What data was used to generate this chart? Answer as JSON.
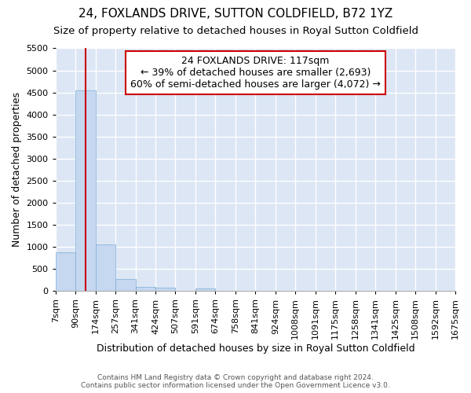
{
  "title_line1": "24, FOXLANDS DRIVE, SUTTON COLDFIELD, B72 1YZ",
  "title_line2": "Size of property relative to detached houses in Royal Sutton Coldfield",
  "xlabel": "Distribution of detached houses by size in Royal Sutton Coldfield",
  "ylabel": "Number of detached properties",
  "footnote": "Contains HM Land Registry data © Crown copyright and database right 2024.\nContains public sector information licensed under the Open Government Licence v3.0.",
  "bin_labels": [
    "7sqm",
    "90sqm",
    "174sqm",
    "257sqm",
    "341sqm",
    "424sqm",
    "507sqm",
    "591sqm",
    "674sqm",
    "758sqm",
    "841sqm",
    "924sqm",
    "1008sqm",
    "1091sqm",
    "1175sqm",
    "1258sqm",
    "1341sqm",
    "1425sqm",
    "1508sqm",
    "1592sqm",
    "1675sqm"
  ],
  "bar_values": [
    880,
    4550,
    1060,
    275,
    90,
    80,
    0,
    60,
    0,
    0,
    0,
    0,
    0,
    0,
    0,
    0,
    0,
    0,
    0,
    0
  ],
  "bar_color": "#c5d8f0",
  "bar_edge_color": "#7aadd4",
  "vline_x": 1.5,
  "vline_color": "#cc0000",
  "annotation_text": "24 FOXLANDS DRIVE: 117sqm\n← 39% of detached houses are smaller (2,693)\n60% of semi-detached houses are larger (4,072) →",
  "annotation_box_color": "white",
  "annotation_box_edge": "#cc0000",
  "ylim_min": 0,
  "ylim_max": 5500,
  "yticks": [
    0,
    500,
    1000,
    1500,
    2000,
    2500,
    3000,
    3500,
    4000,
    4500,
    5000,
    5500
  ],
  "fig_bg_color": "#ffffff",
  "plot_bg_color": "#dce6f5",
  "grid_color": "#ffffff",
  "title_fontsize": 11,
  "subtitle_fontsize": 9.5,
  "axis_label_fontsize": 9,
  "tick_fontsize": 8,
  "annotation_fontsize": 9
}
